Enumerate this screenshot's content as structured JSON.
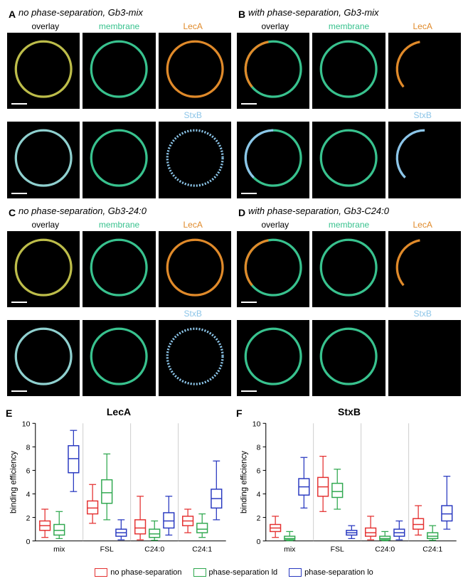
{
  "colors": {
    "membrane": "#38c28e",
    "leca": "#e08a2a",
    "stxb": "#8cc5e8",
    "overlay_ac": "#c9c94a",
    "overlay_bd": "#7fd8c0",
    "bg": "#000000",
    "red": "#e43030",
    "green": "#2fa84f",
    "blue": "#2838c0",
    "axis": "#000000"
  },
  "panels": {
    "A": {
      "title": "no phase-separation, Gb3-mix",
      "rows": [
        {
          "labels": [
            "overlay",
            "membrane",
            "LecA"
          ],
          "label_colors": [
            "#000",
            "#38c28e",
            "#e08a2a"
          ]
        },
        {
          "labels": [
            "",
            "",
            "StxB"
          ],
          "label_colors": [
            "#000",
            "#000",
            "#8cc5e8"
          ]
        }
      ]
    },
    "B": {
      "title": "with phase-separation, Gb3-mix",
      "rows": [
        {
          "labels": [
            "overlay",
            "membrane",
            "LecA"
          ],
          "label_colors": [
            "#000",
            "#38c28e",
            "#e08a2a"
          ]
        },
        {
          "labels": [
            "",
            "",
            "StxB"
          ],
          "label_colors": [
            "#000",
            "#000",
            "#8cc5e8"
          ]
        }
      ]
    },
    "C": {
      "title": "no phase-separation, Gb3-24:0",
      "rows": [
        {
          "labels": [
            "overlay",
            "membrane",
            "LecA"
          ],
          "label_colors": [
            "#000",
            "#38c28e",
            "#e08a2a"
          ]
        },
        {
          "labels": [
            "",
            "",
            "StxB"
          ],
          "label_colors": [
            "#000",
            "#000",
            "#8cc5e8"
          ]
        }
      ]
    },
    "D": {
      "title": "with phase-separation, Gb3-C24:0",
      "rows": [
        {
          "labels": [
            "overlay",
            "membrane",
            "LecA"
          ],
          "label_colors": [
            "#000",
            "#38c28e",
            "#e08a2a"
          ]
        },
        {
          "labels": [
            "",
            "",
            "StxB"
          ],
          "label_colors": [
            "#000",
            "#000",
            "#8cc5e8"
          ]
        }
      ]
    }
  },
  "chart": {
    "ylabel": "binding efficiency",
    "ymin": 0,
    "ymax": 10,
    "yticks": [
      0,
      2,
      4,
      6,
      8,
      10
    ],
    "categories": [
      "mix",
      "FSL",
      "C24:0",
      "C24:1"
    ],
    "legend": [
      {
        "label": "no phase-separation",
        "color": "#e43030"
      },
      {
        "label": "phase-separation ld",
        "color": "#2fa84f"
      },
      {
        "label": "phase-separation lo",
        "color": "#2838c0"
      }
    ],
    "panels": {
      "E": {
        "title": "LecA",
        "data": {
          "mix": {
            "red": {
              "min": 0.3,
              "q1": 0.9,
              "med": 1.3,
              "q3": 1.7,
              "max": 2.7
            },
            "green": {
              "min": 0.2,
              "q1": 0.5,
              "med": 0.9,
              "q3": 1.4,
              "max": 2.5
            },
            "blue": {
              "min": 4.2,
              "q1": 5.8,
              "med": 7.0,
              "q3": 8.1,
              "max": 9.4
            }
          },
          "FSL": {
            "red": {
              "min": 1.5,
              "q1": 2.3,
              "med": 2.8,
              "q3": 3.4,
              "max": 4.8
            },
            "green": {
              "min": 1.8,
              "q1": 3.2,
              "med": 4.1,
              "q3": 5.2,
              "max": 7.4
            },
            "blue": {
              "min": 0.1,
              "q1": 0.4,
              "med": 0.7,
              "q3": 1.0,
              "max": 1.8
            }
          },
          "C24:0": {
            "red": {
              "min": 0.1,
              "q1": 0.6,
              "med": 1.1,
              "q3": 1.8,
              "max": 3.8
            },
            "green": {
              "min": 0.05,
              "q1": 0.3,
              "med": 0.6,
              "q3": 1.0,
              "max": 1.7
            },
            "blue": {
              "min": 0.5,
              "q1": 1.1,
              "med": 1.7,
              "q3": 2.4,
              "max": 3.8
            }
          },
          "C24:1": {
            "red": {
              "min": 0.7,
              "q1": 1.3,
              "med": 1.7,
              "q3": 2.1,
              "max": 2.7
            },
            "green": {
              "min": 0.3,
              "q1": 0.7,
              "med": 1.0,
              "q3": 1.5,
              "max": 2.3
            },
            "blue": {
              "min": 1.8,
              "q1": 2.8,
              "med": 3.6,
              "q3": 4.4,
              "max": 6.8
            }
          }
        }
      },
      "F": {
        "title": "StxB",
        "data": {
          "mix": {
            "red": {
              "min": 0.3,
              "q1": 0.8,
              "med": 1.1,
              "q3": 1.4,
              "max": 2.1
            },
            "green": {
              "min": 0.02,
              "q1": 0.1,
              "med": 0.2,
              "q3": 0.4,
              "max": 0.8
            },
            "blue": {
              "min": 2.8,
              "q1": 3.9,
              "med": 4.6,
              "q3": 5.3,
              "max": 7.1
            }
          },
          "FSL": {
            "red": {
              "min": 2.5,
              "q1": 3.8,
              "med": 4.6,
              "q3": 5.4,
              "max": 7.2
            },
            "green": {
              "min": 2.7,
              "q1": 3.7,
              "med": 4.2,
              "q3": 4.9,
              "max": 6.1
            },
            "blue": {
              "min": 0.2,
              "q1": 0.5,
              "med": 0.7,
              "q3": 0.9,
              "max": 1.3
            }
          },
          "C24:0": {
            "red": {
              "min": 0.1,
              "q1": 0.4,
              "med": 0.7,
              "q3": 1.1,
              "max": 2.1
            },
            "green": {
              "min": 0.02,
              "q1": 0.1,
              "med": 0.2,
              "q3": 0.4,
              "max": 0.8
            },
            "blue": {
              "min": 0.1,
              "q1": 0.4,
              "med": 0.7,
              "q3": 1.0,
              "max": 1.7
            }
          },
          "C24:1": {
            "red": {
              "min": 0.5,
              "q1": 1.0,
              "med": 1.4,
              "q3": 1.9,
              "max": 3.0
            },
            "green": {
              "min": 0.05,
              "q1": 0.2,
              "med": 0.4,
              "q3": 0.7,
              "max": 1.3
            },
            "blue": {
              "min": 1.0,
              "q1": 1.7,
              "med": 2.3,
              "q3": 3.0,
              "max": 5.5
            }
          }
        }
      }
    }
  }
}
